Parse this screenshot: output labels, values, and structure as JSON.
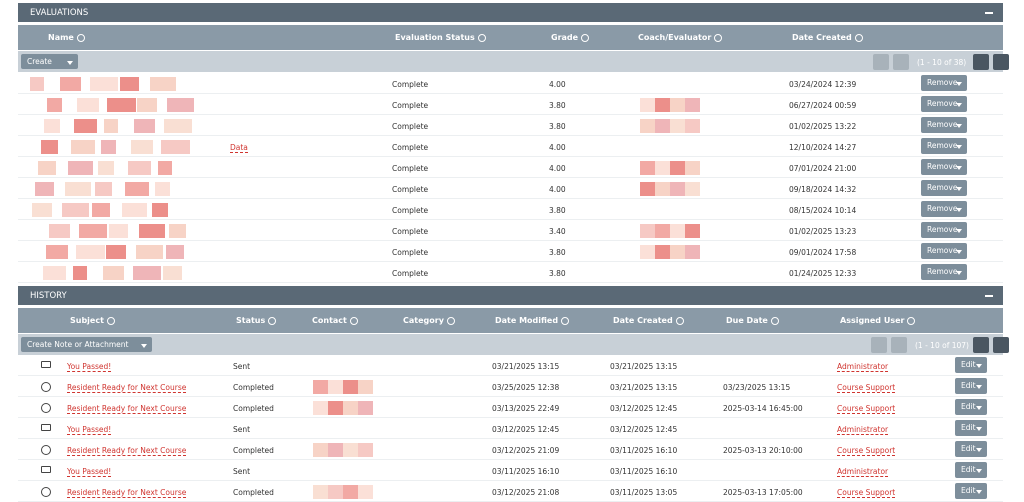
{
  "evaluations": {
    "title": "EVALUATIONS",
    "columns": [
      "Name",
      "Evaluation Status",
      "Grade",
      "Coach/Evaluator",
      "Date Created"
    ],
    "create_button": "Create",
    "pagination": "(1 - 10 of 38)",
    "remove_button": "Remove",
    "rows": [
      {
        "status": "Complete",
        "grade": "4.00",
        "date_created": "03/24/2024 12:39"
      },
      {
        "status": "Complete",
        "grade": "3.80",
        "date_created": "06/27/2024 00:59"
      },
      {
        "status": "Complete",
        "grade": "3.80",
        "date_created": "01/02/2025 13:22"
      },
      {
        "name": "Data",
        "status": "Complete",
        "grade": "4.00",
        "date_created": "12/10/2024 14:27"
      },
      {
        "status": "Complete",
        "grade": "4.00",
        "date_created": "07/01/2024 21:00"
      },
      {
        "status": "Complete",
        "grade": "4.00",
        "date_created": "09/18/2024 14:32"
      },
      {
        "status": "Complete",
        "grade": "3.80",
        "date_created": "08/15/2024 10:14"
      },
      {
        "status": "Complete",
        "grade": "3.40",
        "date_created": "01/02/2025 13:23"
      },
      {
        "status": "Complete",
        "grade": "3.80",
        "date_created": "09/01/2024 17:58"
      },
      {
        "status": "Complete",
        "grade": "3.80",
        "date_created": "01/24/2025 12:33"
      }
    ]
  },
  "history": {
    "title": "HISTORY",
    "columns": [
      "Subject",
      "Status",
      "Contact",
      "Category",
      "Date Modified",
      "Date Created",
      "Due Date",
      "Assigned User"
    ],
    "create_button": "Create Note or Attachment",
    "pagination": "(1 - 10 of 107)",
    "edit_button": "Edit",
    "rows": [
      {
        "subject": "You Passed!",
        "status": "Sent",
        "date_modified": "03/21/2025 13:15",
        "date_created": "03/21/2025 13:15",
        "assigned_user": "Administrator"
      },
      {
        "subject": "Resident Ready for Next Course",
        "status": "Completed",
        "date_modified": "03/25/2025 12:38",
        "date_created": "03/21/2025 13:15",
        "due_date": "03/23/2025 13:15",
        "assigned_user": "Course Support"
      },
      {
        "subject": "Resident Ready for Next Course",
        "status": "Completed",
        "date_modified": "03/13/2025 22:49",
        "date_created": "03/12/2025 12:45",
        "due_date": "2025-03-14 16:45:00",
        "assigned_user": "Course Support"
      },
      {
        "subject": "You Passed!",
        "status": "Sent",
        "date_modified": "03/12/2025 12:45",
        "date_created": "03/12/2025 12:45",
        "assigned_user": "Administrator"
      },
      {
        "subject": "Resident Ready for Next Course",
        "status": "Completed",
        "date_modified": "03/12/2025 21:09",
        "date_created": "03/11/2025 16:10",
        "due_date": "2025-03-13 20:10:00",
        "assigned_user": "Course Support"
      },
      {
        "subject": "You Passed!",
        "status": "Sent",
        "date_modified": "03/11/2025 16:10",
        "date_created": "03/11/2025 16:10",
        "assigned_user": "Administrator"
      },
      {
        "subject": "Resident Ready for Next Course",
        "status": "Completed",
        "date_modified": "03/12/2025 21:08",
        "date_created": "03/11/2025 13:05",
        "due_date": "2025-03-13 17:05:00",
        "assigned_user": "Course Support"
      }
    ]
  }
}
